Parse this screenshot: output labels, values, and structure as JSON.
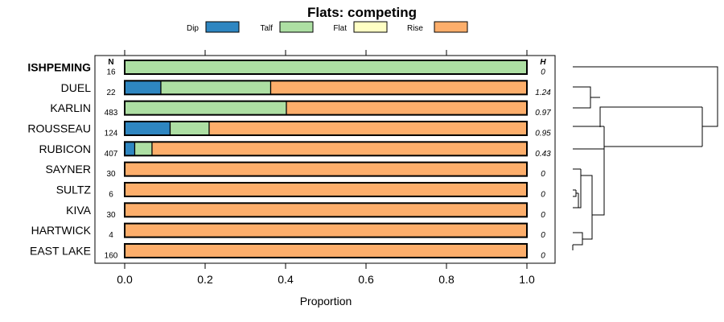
{
  "chart_data": {
    "type": "bar",
    "stacked": true,
    "title": "Flats: competing",
    "xlabel": "Proportion",
    "xlim": [
      0,
      1
    ],
    "xticks": [
      "0.0",
      "0.2",
      "0.4",
      "0.6",
      "0.8",
      "1.0"
    ],
    "n_header": "N",
    "h_header": "H",
    "highlight": "ISHPEMING",
    "series": [
      {
        "name": "Dip",
        "color": "#2e86c1"
      },
      {
        "name": "Talf",
        "color": "#addfa3"
      },
      {
        "name": "Flat",
        "color": "#ffffc4"
      },
      {
        "name": "Rise",
        "color": "#fdae6b"
      }
    ],
    "rows": [
      {
        "label": "ISHPEMING",
        "n": "16",
        "h": "0",
        "values": [
          0,
          1.0,
          0,
          0
        ]
      },
      {
        "label": "DUEL",
        "n": "22",
        "h": "1.24",
        "values": [
          0.09,
          0.273,
          0,
          0.637
        ]
      },
      {
        "label": "KARLIN",
        "n": "483",
        "h": "0.97",
        "values": [
          0,
          0.402,
          0,
          0.598
        ]
      },
      {
        "label": "ROUSSEAU",
        "n": "124",
        "h": "0.95",
        "values": [
          0.113,
          0.097,
          0,
          0.79
        ]
      },
      {
        "label": "RUBICON",
        "n": "407",
        "h": "0.43",
        "values": [
          0.025,
          0.043,
          0,
          0.932
        ]
      },
      {
        "label": "SAYNER",
        "n": "30",
        "h": "0",
        "values": [
          0,
          0,
          0,
          1.0
        ]
      },
      {
        "label": "SULTZ",
        "n": "6",
        "h": "0",
        "values": [
          0,
          0,
          0,
          1.0
        ]
      },
      {
        "label": "KIVA",
        "n": "30",
        "h": "0",
        "values": [
          0,
          0,
          0,
          1.0
        ]
      },
      {
        "label": "HARTWICK",
        "n": "4",
        "h": "0",
        "values": [
          0,
          0,
          0,
          1.0
        ]
      },
      {
        "label": "EAST LAKE",
        "n": "160",
        "h": "0",
        "values": [
          0,
          0,
          0,
          1.0
        ]
      }
    ]
  }
}
